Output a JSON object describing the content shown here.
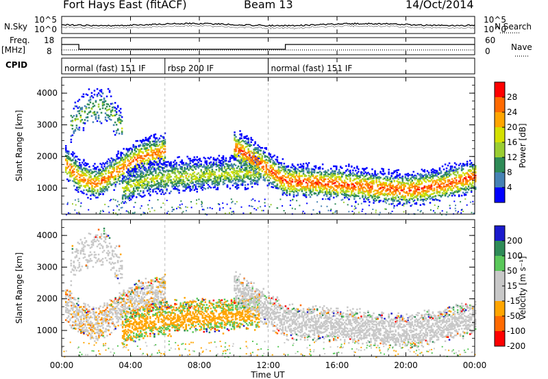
{
  "header": {
    "title": "Fort Hays East (fitACF)",
    "beam": "Beam 13",
    "date": "14/Oct/2014"
  },
  "top_panels": {
    "nsky_label": "N.Sky",
    "nsearch_label": "N.Search",
    "nsky_ticks": [
      "10^5",
      "10^0"
    ],
    "nsearch_ticks": [
      "10^5",
      "10^0"
    ],
    "freq_label_line1": "Freq.",
    "freq_label_line2": "[MHz]",
    "freq_ticks": [
      "18",
      "8"
    ],
    "nave_label": "Nave",
    "nave_ticks": [
      "60",
      "0"
    ],
    "cpid_label": "CPID",
    "cpid_segments": [
      {
        "label": "normal (fast) 151 IF",
        "start_hr": 0,
        "end_hr": 6
      },
      {
        "label": "rbsp 200 IF",
        "start_hr": 6,
        "end_hr": 12
      },
      {
        "label": "normal (fast) 151 IF",
        "start_hr": 12,
        "end_hr": 24
      }
    ]
  },
  "power_panel": {
    "ylabel": "Slant Range [km]",
    "yticks": [
      "4000",
      "3000",
      "2000",
      "1000"
    ],
    "colorbar_label": "Power [dB]",
    "colorbar_ticks": [
      "28",
      "24",
      "20",
      "16",
      "12",
      "8",
      "4"
    ],
    "colorbar_colors": [
      "#ff0000",
      "#ff6a00",
      "#ffa500",
      "#d4e000",
      "#9acd32",
      "#2e8b57",
      "#4682b4",
      "#0000ff"
    ]
  },
  "velocity_panel": {
    "ylabel": "Slant Range [km]",
    "yticks": [
      "4000",
      "3000",
      "2000",
      "1000"
    ],
    "colorbar_label": "Velocity [m s⁻¹]",
    "colorbar_ticks": [
      "200",
      "100",
      "50",
      "15",
      "-15",
      "-50",
      "-100",
      "-200"
    ],
    "colorbar_colors": [
      "#1a1acd",
      "#2e8b57",
      "#5ac85a",
      "#c8c8c8",
      "#c8c8c8",
      "#ffa500",
      "#ff6a00",
      "#ff0000"
    ]
  },
  "xaxis": {
    "label": "Time UT",
    "ticks": [
      "00:00",
      "04:00",
      "08:00",
      "12:00",
      "16:00",
      "20:00",
      "00:00"
    ]
  },
  "chart_data": {
    "type": "heatmap",
    "title": "Fort Hays East (fitACF)",
    "xlabel": "Time UT",
    "ylabel": "Slant Range [km]",
    "xlim_hours": [
      0,
      24
    ],
    "ylim_km": [
      180,
      4500
    ],
    "frequency_mhz": {
      "x_hours": [
        0,
        1,
        1,
        13,
        13,
        24
      ],
      "values": [
        14,
        14,
        10.5,
        10.5,
        14,
        14
      ]
    },
    "power_db_range": [
      0,
      30
    ],
    "velocity_range": [
      -200,
      200
    ],
    "series": [
      {
        "name": "Power",
        "unit": "dB"
      },
      {
        "name": "Velocity",
        "unit": "m s-1"
      }
    ],
    "echo_bands": [
      {
        "x_hours": [
          0.2,
          1.0,
          2.0,
          3.0,
          4.5,
          6.0
        ],
        "range_km": [
          1800,
          1350,
          1150,
          1500,
          2000,
          2200
        ],
        "power_db": 24,
        "velocity": -5
      },
      {
        "x_hours": [
          3.5,
          5.0,
          7.0,
          9.0,
          10.5,
          11.5
        ],
        "range_km": [
          1000,
          1300,
          1400,
          1450,
          1500,
          1550
        ],
        "power_db": 16,
        "velocity": -40
      },
      {
        "x_hours": [
          10.0,
          11.0,
          12.0,
          13.0,
          16.0,
          18.0,
          20.0,
          22.0,
          24.0
        ],
        "range_km": [
          2300,
          2000,
          1600,
          1250,
          1150,
          1050,
          950,
          1100,
          1400
        ],
        "power_db": 26,
        "velocity": 0
      },
      {
        "x_hours": [
          0.5,
          1.5,
          2.5,
          3.5
        ],
        "range_km": [
          3000,
          3500,
          3600,
          2900
        ],
        "power_db": 14,
        "velocity": 0
      }
    ]
  }
}
